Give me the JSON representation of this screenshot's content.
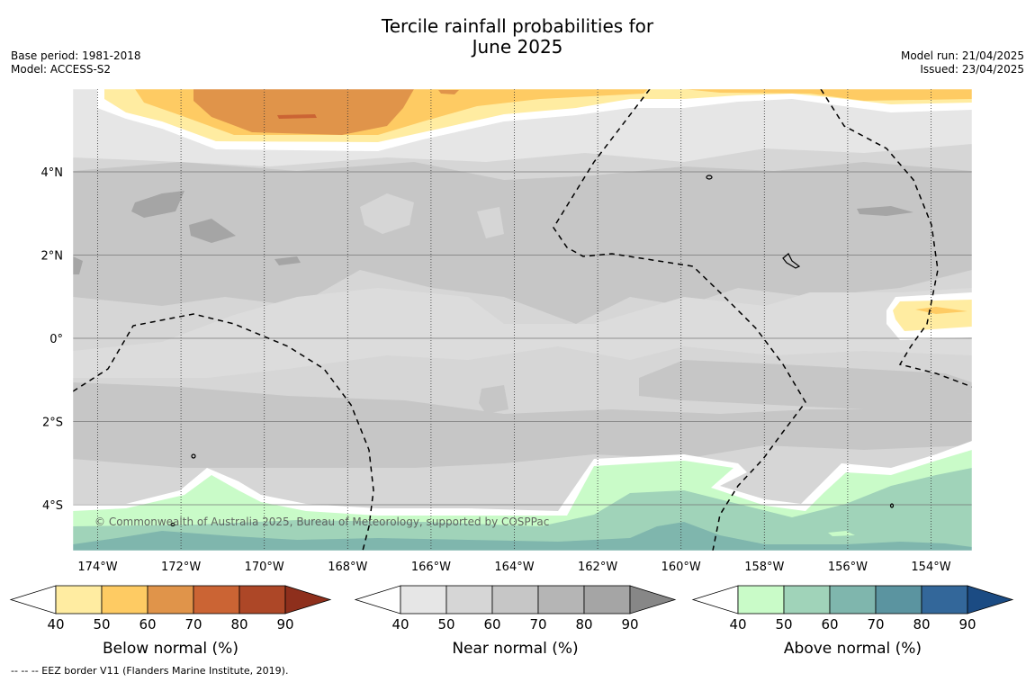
{
  "title": {
    "line1": "Tercile rainfall probabilities for",
    "line2": "June 2025"
  },
  "meta": {
    "base_period": "Base period: 1981-2018",
    "model": "Model: ACCESS-S2",
    "model_run": "Model run: 21/04/2025",
    "issued": "Issued: 23/04/2025"
  },
  "map": {
    "lon_labels": [
      "174°W",
      "172°W",
      "170°W",
      "168°W",
      "166°W",
      "164°W",
      "162°W",
      "160°W",
      "158°W",
      "156°W",
      "154°W"
    ],
    "lat_labels": [
      "4°N",
      "2°N",
      "0°",
      "2°S",
      "4°S"
    ],
    "copyright": "© Commonwealth of Australia 2025, Bureau of Meteorology, supported by COSPPac"
  },
  "legends": [
    {
      "title": "Below normal (%)",
      "ticks": [
        "40",
        "50",
        "60",
        "70",
        "80",
        "90"
      ],
      "colors": [
        "#ffffff",
        "#ffeca1",
        "#fecb63",
        "#e0944a",
        "#cb6434",
        "#ad4727",
        "#8e2f1c"
      ]
    },
    {
      "title": "Near normal (%)",
      "ticks": [
        "40",
        "50",
        "60",
        "70",
        "80",
        "90"
      ],
      "colors": [
        "#ffffff",
        "#e6e6e6",
        "#d6d6d6",
        "#c6c6c6",
        "#b5b5b5",
        "#a5a5a5",
        "#878787"
      ]
    },
    {
      "title": "Above normal (%)",
      "ticks": [
        "40",
        "50",
        "60",
        "70",
        "80",
        "90"
      ],
      "colors": [
        "#ffffff",
        "#c9fbc8",
        "#a0d3b9",
        "#7fb6ad",
        "#5b94a0",
        "#33679a",
        "#1b4b83"
      ]
    }
  ],
  "footer": "--  --  -- EEZ border V11 (Flanders Marine Institute, 2019)."
}
